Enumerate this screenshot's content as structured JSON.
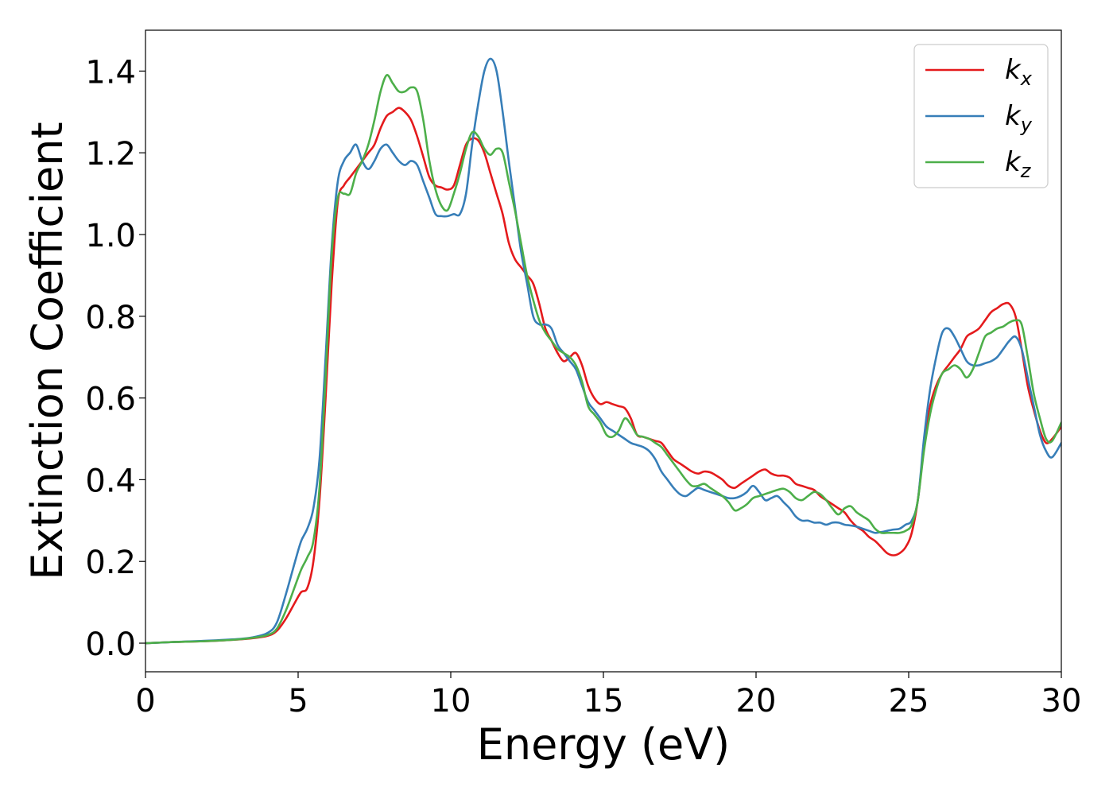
{
  "chart_data": {
    "type": "line",
    "title": "",
    "xlabel": "Energy (eV)",
    "ylabel": "Extinction Coefficient",
    "xlim": [
      0,
      30
    ],
    "ylim": [
      -0.07,
      1.5
    ],
    "xticks": [
      0,
      5,
      10,
      15,
      20,
      25,
      30
    ],
    "yticks": [
      0.0,
      0.2,
      0.4,
      0.6,
      0.8,
      1.0,
      1.2,
      1.4
    ],
    "grid": false,
    "legend_position": "top-right",
    "series": [
      {
        "name": "k",
        "name_sub": "x",
        "color": "#e41a1c",
        "x": [
          0,
          1,
          2,
          3,
          3.5,
          4,
          4.3,
          4.6,
          4.9,
          5.1,
          5.3,
          5.5,
          5.7,
          5.9,
          6.1,
          6.3,
          6.5,
          6.7,
          6.9,
          7.1,
          7.3,
          7.5,
          7.7,
          7.9,
          8.1,
          8.3,
          8.5,
          8.7,
          8.9,
          9.1,
          9.3,
          9.5,
          9.7,
          9.9,
          10.1,
          10.3,
          10.5,
          10.7,
          10.9,
          11.1,
          11.3,
          11.5,
          11.7,
          11.9,
          12.1,
          12.3,
          12.5,
          12.7,
          12.9,
          13.1,
          13.3,
          13.5,
          13.7,
          13.9,
          14.1,
          14.3,
          14.5,
          14.7,
          14.9,
          15.1,
          15.3,
          15.5,
          15.7,
          15.9,
          16.1,
          16.3,
          16.5,
          16.7,
          16.9,
          17.1,
          17.3,
          17.5,
          17.7,
          17.9,
          18.1,
          18.3,
          18.5,
          18.7,
          18.9,
          19.1,
          19.3,
          19.5,
          19.7,
          19.9,
          20.1,
          20.3,
          20.5,
          20.7,
          20.9,
          21.1,
          21.3,
          21.5,
          21.7,
          21.9,
          22.1,
          22.3,
          22.5,
          22.7,
          22.9,
          23.1,
          23.3,
          23.5,
          23.7,
          23.9,
          24.1,
          24.3,
          24.5,
          24.7,
          24.9,
          25.1,
          25.3,
          25.5,
          25.7,
          25.9,
          26.1,
          26.3,
          26.5,
          26.7,
          26.9,
          27.1,
          27.3,
          27.5,
          27.7,
          27.9,
          28.1,
          28.3,
          28.5,
          28.7,
          28.9,
          29.1,
          29.3,
          29.5,
          29.7,
          30
        ],
        "y": [
          0.0,
          0.003,
          0.005,
          0.009,
          0.012,
          0.018,
          0.03,
          0.06,
          0.1,
          0.125,
          0.135,
          0.2,
          0.35,
          0.6,
          0.88,
          1.08,
          1.12,
          1.14,
          1.16,
          1.18,
          1.2,
          1.22,
          1.26,
          1.29,
          1.3,
          1.31,
          1.3,
          1.28,
          1.24,
          1.19,
          1.14,
          1.12,
          1.115,
          1.11,
          1.12,
          1.17,
          1.22,
          1.235,
          1.23,
          1.2,
          1.15,
          1.1,
          1.05,
          0.98,
          0.94,
          0.92,
          0.9,
          0.88,
          0.83,
          0.77,
          0.74,
          0.71,
          0.69,
          0.7,
          0.71,
          0.68,
          0.63,
          0.6,
          0.585,
          0.59,
          0.585,
          0.58,
          0.575,
          0.55,
          0.51,
          0.505,
          0.5,
          0.495,
          0.49,
          0.47,
          0.45,
          0.44,
          0.43,
          0.42,
          0.415,
          0.42,
          0.418,
          0.41,
          0.4,
          0.385,
          0.38,
          0.39,
          0.4,
          0.41,
          0.42,
          0.425,
          0.415,
          0.41,
          0.41,
          0.405,
          0.39,
          0.385,
          0.38,
          0.375,
          0.36,
          0.35,
          0.34,
          0.33,
          0.32,
          0.3,
          0.285,
          0.275,
          0.26,
          0.25,
          0.235,
          0.22,
          0.215,
          0.22,
          0.235,
          0.27,
          0.35,
          0.48,
          0.58,
          0.63,
          0.66,
          0.68,
          0.7,
          0.72,
          0.75,
          0.76,
          0.77,
          0.79,
          0.81,
          0.82,
          0.83,
          0.83,
          0.8,
          0.72,
          0.63,
          0.57,
          0.52,
          0.49,
          0.5,
          0.53
        ]
      },
      {
        "name": "k",
        "name_sub": "y",
        "color": "#377eb8",
        "x": [
          0,
          1,
          2,
          3,
          3.5,
          4,
          4.3,
          4.6,
          4.9,
          5.1,
          5.3,
          5.5,
          5.7,
          5.9,
          6.1,
          6.3,
          6.5,
          6.7,
          6.9,
          7.1,
          7.3,
          7.5,
          7.7,
          7.9,
          8.1,
          8.3,
          8.5,
          8.7,
          8.9,
          9.1,
          9.3,
          9.5,
          9.7,
          9.9,
          10.1,
          10.3,
          10.5,
          10.7,
          10.9,
          11.1,
          11.3,
          11.5,
          11.7,
          11.9,
          12.1,
          12.3,
          12.5,
          12.7,
          12.9,
          13.1,
          13.3,
          13.5,
          13.7,
          13.9,
          14.1,
          14.3,
          14.5,
          14.7,
          14.9,
          15.1,
          15.3,
          15.5,
          15.7,
          15.9,
          16.1,
          16.3,
          16.5,
          16.7,
          16.9,
          17.1,
          17.3,
          17.5,
          17.7,
          17.9,
          18.1,
          18.3,
          18.5,
          18.7,
          18.9,
          19.1,
          19.3,
          19.5,
          19.7,
          19.9,
          20.1,
          20.3,
          20.5,
          20.7,
          20.9,
          21.1,
          21.3,
          21.5,
          21.7,
          21.9,
          22.1,
          22.3,
          22.5,
          22.7,
          22.9,
          23.1,
          23.3,
          23.5,
          23.7,
          23.9,
          24.1,
          24.3,
          24.5,
          24.7,
          24.9,
          25.1,
          25.3,
          25.5,
          25.7,
          25.9,
          26.1,
          26.3,
          26.5,
          26.7,
          26.9,
          27.1,
          27.3,
          27.5,
          27.7,
          27.9,
          28.1,
          28.3,
          28.5,
          28.7,
          28.9,
          29.1,
          29.3,
          29.5,
          29.7,
          30
        ],
        "y": [
          0.0,
          0.003,
          0.006,
          0.01,
          0.014,
          0.025,
          0.05,
          0.12,
          0.2,
          0.25,
          0.28,
          0.33,
          0.45,
          0.7,
          0.97,
          1.13,
          1.18,
          1.2,
          1.22,
          1.18,
          1.16,
          1.18,
          1.21,
          1.22,
          1.2,
          1.18,
          1.17,
          1.18,
          1.17,
          1.13,
          1.09,
          1.05,
          1.045,
          1.045,
          1.05,
          1.05,
          1.1,
          1.22,
          1.32,
          1.4,
          1.43,
          1.4,
          1.3,
          1.18,
          1.07,
          0.96,
          0.88,
          0.8,
          0.78,
          0.78,
          0.77,
          0.73,
          0.71,
          0.69,
          0.67,
          0.63,
          0.59,
          0.57,
          0.55,
          0.53,
          0.52,
          0.51,
          0.5,
          0.49,
          0.485,
          0.48,
          0.47,
          0.45,
          0.42,
          0.4,
          0.38,
          0.365,
          0.36,
          0.37,
          0.38,
          0.375,
          0.37,
          0.365,
          0.36,
          0.355,
          0.355,
          0.36,
          0.37,
          0.385,
          0.37,
          0.35,
          0.355,
          0.36,
          0.345,
          0.33,
          0.31,
          0.3,
          0.3,
          0.295,
          0.295,
          0.29,
          0.295,
          0.295,
          0.29,
          0.288,
          0.285,
          0.28,
          0.275,
          0.27,
          0.272,
          0.275,
          0.278,
          0.28,
          0.29,
          0.3,
          0.35,
          0.5,
          0.62,
          0.7,
          0.76,
          0.77,
          0.75,
          0.72,
          0.69,
          0.68,
          0.68,
          0.685,
          0.69,
          0.7,
          0.72,
          0.74,
          0.75,
          0.72,
          0.65,
          0.58,
          0.51,
          0.47,
          0.455,
          0.49
        ]
      },
      {
        "name": "k",
        "name_sub": "z",
        "color": "#4daf4a",
        "x": [
          0,
          1,
          2,
          3,
          3.5,
          4,
          4.3,
          4.6,
          4.9,
          5.1,
          5.3,
          5.5,
          5.7,
          5.9,
          6.1,
          6.3,
          6.5,
          6.7,
          6.9,
          7.1,
          7.3,
          7.5,
          7.7,
          7.9,
          8.1,
          8.3,
          8.5,
          8.7,
          8.9,
          9.1,
          9.3,
          9.5,
          9.7,
          9.9,
          10.1,
          10.3,
          10.5,
          10.7,
          10.9,
          11.1,
          11.3,
          11.5,
          11.7,
          11.9,
          12.1,
          12.3,
          12.5,
          12.7,
          12.9,
          13.1,
          13.3,
          13.5,
          13.7,
          13.9,
          14.1,
          14.3,
          14.5,
          14.7,
          14.9,
          15.1,
          15.3,
          15.5,
          15.7,
          15.9,
          16.1,
          16.3,
          16.5,
          16.7,
          16.9,
          17.1,
          17.3,
          17.5,
          17.7,
          17.9,
          18.1,
          18.3,
          18.5,
          18.7,
          18.9,
          19.1,
          19.3,
          19.5,
          19.7,
          19.9,
          20.1,
          20.3,
          20.5,
          20.7,
          20.9,
          21.1,
          21.3,
          21.5,
          21.7,
          21.9,
          22.1,
          22.3,
          22.5,
          22.7,
          22.9,
          23.1,
          23.3,
          23.5,
          23.7,
          23.9,
          24.1,
          24.3,
          24.5,
          24.7,
          24.9,
          25.1,
          25.3,
          25.5,
          25.7,
          25.9,
          26.1,
          26.3,
          26.5,
          26.7,
          26.9,
          27.1,
          27.3,
          27.5,
          27.7,
          27.9,
          28.1,
          28.3,
          28.5,
          28.7,
          28.9,
          29.1,
          29.3,
          29.5,
          29.7,
          30
        ],
        "y": [
          0.0,
          0.003,
          0.005,
          0.009,
          0.013,
          0.02,
          0.035,
          0.08,
          0.14,
          0.18,
          0.21,
          0.25,
          0.38,
          0.65,
          0.95,
          1.09,
          1.1,
          1.1,
          1.15,
          1.18,
          1.22,
          1.28,
          1.35,
          1.39,
          1.37,
          1.35,
          1.35,
          1.36,
          1.35,
          1.28,
          1.18,
          1.11,
          1.07,
          1.06,
          1.1,
          1.15,
          1.21,
          1.25,
          1.24,
          1.21,
          1.195,
          1.21,
          1.2,
          1.13,
          1.06,
          0.98,
          0.9,
          0.84,
          0.79,
          0.76,
          0.74,
          0.72,
          0.71,
          0.7,
          0.68,
          0.64,
          0.58,
          0.56,
          0.54,
          0.51,
          0.505,
          0.52,
          0.55,
          0.535,
          0.51,
          0.505,
          0.5,
          0.49,
          0.48,
          0.46,
          0.44,
          0.42,
          0.4,
          0.385,
          0.385,
          0.39,
          0.38,
          0.37,
          0.36,
          0.345,
          0.325,
          0.33,
          0.34,
          0.355,
          0.36,
          0.365,
          0.37,
          0.375,
          0.378,
          0.37,
          0.355,
          0.35,
          0.36,
          0.37,
          0.365,
          0.35,
          0.33,
          0.315,
          0.33,
          0.335,
          0.32,
          0.31,
          0.3,
          0.28,
          0.27,
          0.27,
          0.27,
          0.27,
          0.275,
          0.29,
          0.35,
          0.47,
          0.56,
          0.62,
          0.66,
          0.67,
          0.68,
          0.67,
          0.65,
          0.67,
          0.71,
          0.75,
          0.76,
          0.77,
          0.775,
          0.785,
          0.79,
          0.78,
          0.7,
          0.61,
          0.55,
          0.5,
          0.495,
          0.54
        ]
      }
    ]
  }
}
